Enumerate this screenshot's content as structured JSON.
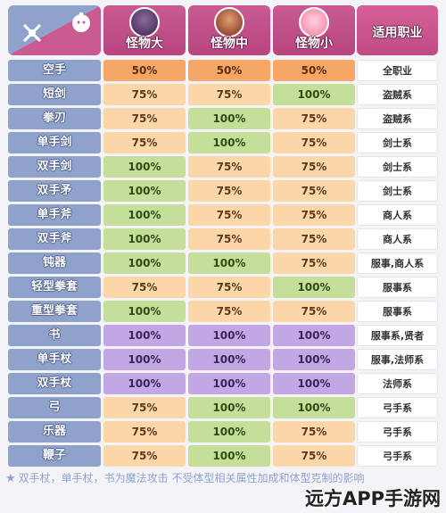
{
  "header": {
    "corner_icons": [
      "sword-icon",
      "slime-icon"
    ],
    "columns": [
      {
        "label": "怪物大",
        "portrait_color": "#5b3b6e"
      },
      {
        "label": "怪物中",
        "portrait_color": "#a0493a"
      },
      {
        "label": "怪物小",
        "portrait_color": "#f6a3bd"
      },
      {
        "label": "适用职业"
      }
    ]
  },
  "rows": [
    {
      "weapon": "空手",
      "large": "50%",
      "medium": "50%",
      "small": "50%",
      "job": "全职业"
    },
    {
      "weapon": "短剑",
      "large": "75%",
      "medium": "75%",
      "small": "100%",
      "job": "盗贼系"
    },
    {
      "weapon": "拳刃",
      "large": "75%",
      "medium": "100%",
      "small": "75%",
      "job": "盗贼系"
    },
    {
      "weapon": "单手剑",
      "large": "75%",
      "medium": "100%",
      "small": "75%",
      "job": "剑士系"
    },
    {
      "weapon": "双手剑",
      "large": "100%",
      "medium": "75%",
      "small": "75%",
      "job": "剑士系"
    },
    {
      "weapon": "双手矛",
      "large": "100%",
      "medium": "75%",
      "small": "75%",
      "job": "剑士系"
    },
    {
      "weapon": "单手斧",
      "large": "100%",
      "medium": "75%",
      "small": "75%",
      "job": "商人系"
    },
    {
      "weapon": "双手斧",
      "large": "100%",
      "medium": "75%",
      "small": "75%",
      "job": "商人系"
    },
    {
      "weapon": "钝器",
      "large": "100%",
      "medium": "100%",
      "small": "75%",
      "job": "服事,商人系"
    },
    {
      "weapon": "轻型拳套",
      "large": "75%",
      "medium": "75%",
      "small": "100%",
      "job": "服事系"
    },
    {
      "weapon": "重型拳套",
      "large": "100%",
      "medium": "75%",
      "small": "75%",
      "job": "服事系"
    },
    {
      "weapon": "书",
      "large": "100%",
      "medium": "100%",
      "small": "100%",
      "job": "服事系,贤者"
    },
    {
      "weapon": "单手杖",
      "large": "100%",
      "medium": "100%",
      "small": "100%",
      "job": "服事,法师系"
    },
    {
      "weapon": "双手杖",
      "large": "100%",
      "medium": "100%",
      "small": "100%",
      "job": "法师系"
    },
    {
      "weapon": "弓",
      "large": "75%",
      "medium": "100%",
      "small": "100%",
      "job": "弓手系"
    },
    {
      "weapon": "乐器",
      "large": "75%",
      "medium": "100%",
      "small": "75%",
      "job": "弓手系"
    },
    {
      "weapon": "鞭子",
      "large": "75%",
      "medium": "100%",
      "small": "75%",
      "job": "弓手系"
    }
  ],
  "magic_rows": [
    "书",
    "单手杖",
    "双手杖"
  ],
  "colors": {
    "v50": "#f6a766",
    "v75": "#fbd6a9",
    "v100": "#c5df9a",
    "magic": "#c3a7e5",
    "weapon_cell": "#8fa2cc",
    "header": "#c95a92"
  },
  "footer": {
    "icon": "star-icon",
    "note": "双手杖，单手杖，书为魔法攻击 不受体型相关属性加成和体型克制的影响"
  },
  "watermark": "远方APP手游网"
}
